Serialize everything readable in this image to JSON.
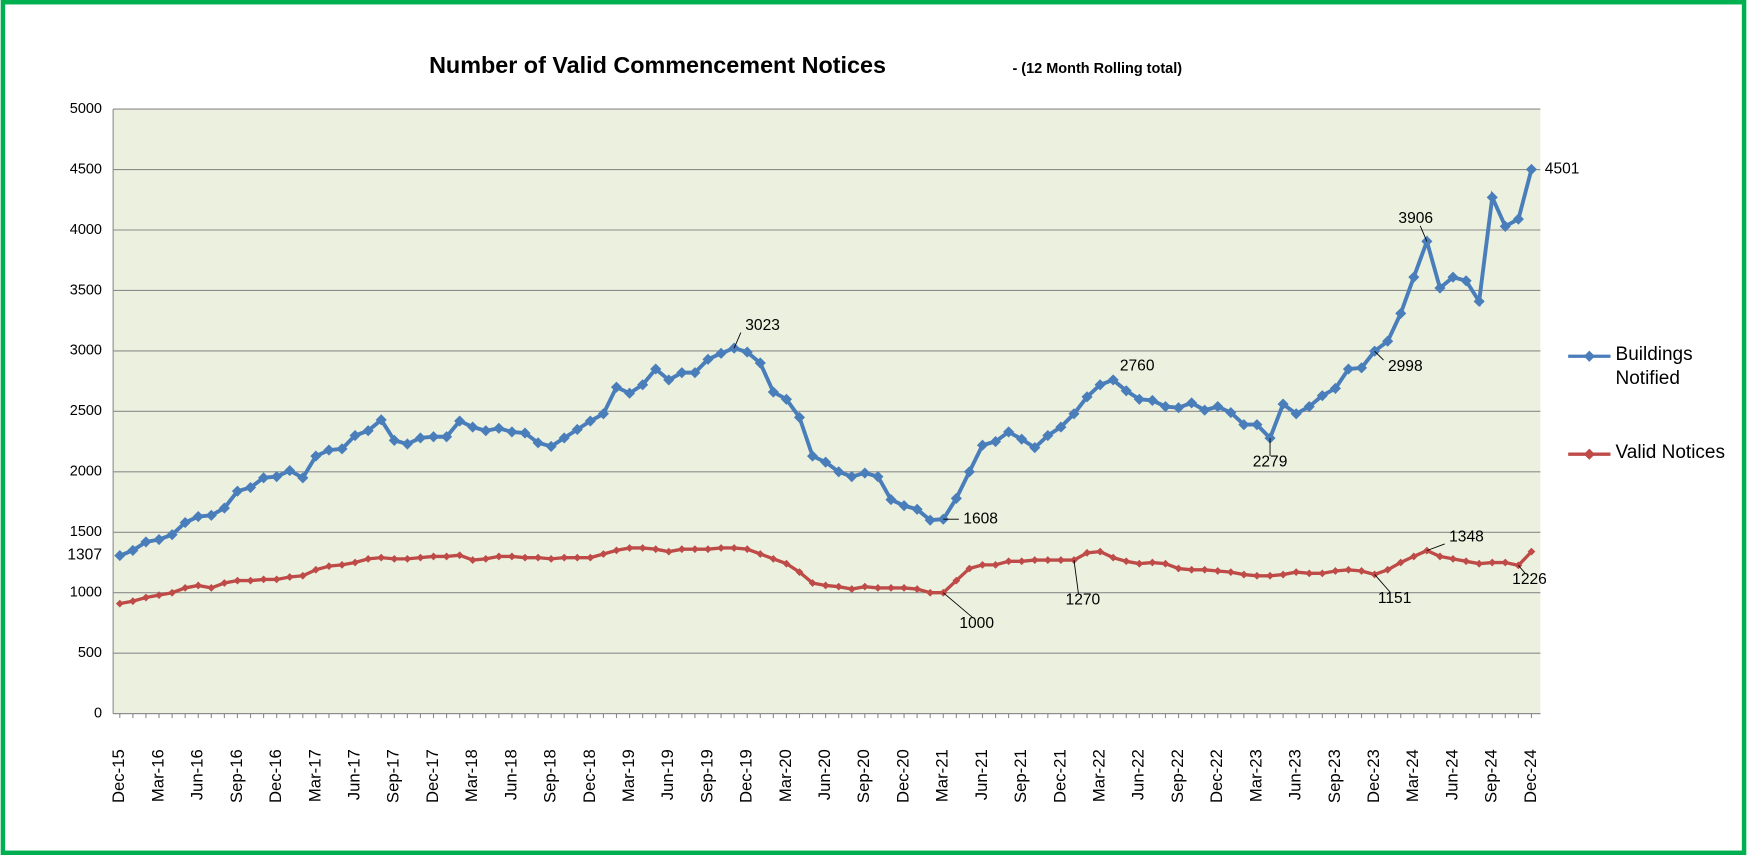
{
  "chart_data": {
    "type": "line",
    "title": "Number of Valid Commencement Notices",
    "subtitle": "- (12 Month Rolling total)",
    "categories": [
      "Dec-15",
      null,
      null,
      "Mar-16",
      null,
      null,
      "Jun-16",
      null,
      null,
      "Sep-16",
      null,
      null,
      "Dec-16",
      null,
      null,
      "Mar-17",
      null,
      null,
      "Jun-17",
      null,
      null,
      "Sep-17",
      null,
      null,
      "Dec-17",
      null,
      null,
      "Mar-18",
      null,
      null,
      "Jun-18",
      null,
      null,
      "Sep-18",
      null,
      null,
      "Dec-18",
      null,
      null,
      "Mar-19",
      null,
      null,
      "Jun-19",
      null,
      null,
      "Sep-19",
      null,
      null,
      "Dec-19",
      null,
      null,
      "Mar-20",
      null,
      null,
      "Jun-20",
      null,
      null,
      "Sep-20",
      null,
      null,
      "Dec-20",
      null,
      null,
      "Mar-21",
      null,
      null,
      "Jun-21",
      null,
      null,
      "Sep-21",
      null,
      null,
      "Dec-21",
      null,
      null,
      "Mar-22",
      null,
      null,
      "Jun-22",
      null,
      null,
      "Sep-22",
      null,
      null,
      "Dec-22",
      null,
      null,
      "Mar-23",
      null,
      null,
      "Jun-23",
      null,
      null,
      "Sep-23",
      null,
      null,
      "Dec-23",
      null,
      null,
      "Mar-24",
      null,
      null,
      "Jun-24",
      null,
      null,
      "Sep-24",
      null,
      null,
      "Dec-24"
    ],
    "series": [
      {
        "name": "Buildings Notified",
        "color": "#4a7ebb",
        "values": [
          1307,
          1350,
          1420,
          1440,
          1480,
          1580,
          1630,
          1640,
          1700,
          1840,
          1870,
          1950,
          1960,
          2010,
          1950,
          2130,
          2180,
          2190,
          2300,
          2340,
          2430,
          2260,
          2230,
          2280,
          2290,
          2290,
          2420,
          2370,
          2340,
          2360,
          2330,
          2320,
          2240,
          2210,
          2280,
          2350,
          2420,
          2480,
          2700,
          2650,
          2720,
          2850,
          2760,
          2820,
          2820,
          2930,
          2980,
          3023,
          2990,
          2900,
          2660,
          2600,
          2450,
          2130,
          2080,
          2000,
          1960,
          1990,
          1960,
          1770,
          1720,
          1690,
          1600,
          1608,
          1780,
          2000,
          2220,
          2250,
          2330,
          2270,
          2200,
          2300,
          2370,
          2480,
          2620,
          2720,
          2760,
          2670,
          2600,
          2590,
          2540,
          2530,
          2570,
          2510,
          2540,
          2490,
          2390,
          2390,
          2279,
          2560,
          2480,
          2540,
          2630,
          2690,
          2850,
          2860,
          2998,
          3080,
          3310,
          3610,
          3906,
          3520,
          3610,
          3580,
          3410,
          4270,
          4030,
          4090,
          4501
        ],
        "value_labels": [
          "1307",
          null,
          null,
          null,
          null,
          null,
          null,
          null,
          null,
          null,
          null,
          null,
          null,
          null,
          null,
          null,
          null,
          null,
          null,
          null,
          null,
          null,
          null,
          null,
          null,
          null,
          null,
          null,
          null,
          null,
          null,
          null,
          null,
          null,
          null,
          null,
          null,
          null,
          null,
          null,
          null,
          null,
          null,
          null,
          null,
          null,
          null,
          "3023",
          null,
          null,
          null,
          null,
          null,
          null,
          null,
          null,
          null,
          null,
          null,
          null,
          null,
          null,
          null,
          "1608",
          null,
          null,
          null,
          null,
          null,
          null,
          null,
          null,
          null,
          null,
          null,
          null,
          "2760",
          null,
          null,
          null,
          null,
          null,
          null,
          null,
          null,
          null,
          null,
          null,
          "2279",
          null,
          null,
          null,
          null,
          null,
          null,
          null,
          "2998",
          null,
          null,
          null,
          "3906",
          null,
          null,
          null,
          null,
          null,
          null,
          null,
          "4501"
        ]
      },
      {
        "name": "Valid Notices",
        "color": "#be4b48",
        "values": [
          910,
          930,
          960,
          980,
          1000,
          1040,
          1060,
          1040,
          1080,
          1100,
          1100,
          1110,
          1110,
          1130,
          1140,
          1190,
          1220,
          1230,
          1250,
          1280,
          1290,
          1280,
          1280,
          1290,
          1300,
          1300,
          1310,
          1270,
          1280,
          1300,
          1300,
          1290,
          1290,
          1280,
          1290,
          1290,
          1290,
          1320,
          1350,
          1370,
          1370,
          1360,
          1340,
          1360,
          1360,
          1360,
          1370,
          1370,
          1360,
          1320,
          1280,
          1240,
          1170,
          1080,
          1060,
          1050,
          1030,
          1050,
          1040,
          1040,
          1040,
          1030,
          1000,
          1000,
          1100,
          1200,
          1230,
          1230,
          1260,
          1260,
          1270,
          1270,
          1270,
          1270,
          1330,
          1340,
          1290,
          1260,
          1240,
          1250,
          1240,
          1200,
          1190,
          1190,
          1180,
          1170,
          1150,
          1140,
          1140,
          1150,
          1170,
          1160,
          1160,
          1180,
          1190,
          1180,
          1151,
          1190,
          1250,
          1300,
          1348,
          1300,
          1280,
          1260,
          1240,
          1250,
          1250,
          1226,
          1340
        ],
        "value_labels": [
          null,
          null,
          null,
          null,
          null,
          null,
          null,
          null,
          null,
          null,
          null,
          null,
          null,
          null,
          null,
          null,
          null,
          null,
          null,
          null,
          null,
          null,
          null,
          null,
          null,
          null,
          null,
          null,
          null,
          null,
          null,
          null,
          null,
          null,
          null,
          null,
          null,
          null,
          null,
          null,
          null,
          null,
          null,
          null,
          null,
          null,
          null,
          null,
          null,
          null,
          null,
          null,
          null,
          null,
          null,
          null,
          null,
          null,
          null,
          null,
          null,
          null,
          null,
          "1000",
          null,
          null,
          null,
          null,
          null,
          null,
          null,
          null,
          null,
          "1270",
          null,
          null,
          null,
          null,
          null,
          null,
          null,
          null,
          null,
          null,
          null,
          null,
          null,
          null,
          null,
          null,
          null,
          null,
          null,
          null,
          null,
          null,
          "1151",
          null,
          null,
          null,
          "1348",
          null,
          null,
          null,
          null,
          null,
          null,
          "1226",
          null
        ]
      }
    ],
    "ylim": [
      0,
      5000
    ],
    "yticks": [
      0,
      500,
      1000,
      1500,
      2000,
      2500,
      3000,
      3500,
      4000,
      4500,
      5000
    ],
    "grid": true,
    "legend": "right"
  }
}
